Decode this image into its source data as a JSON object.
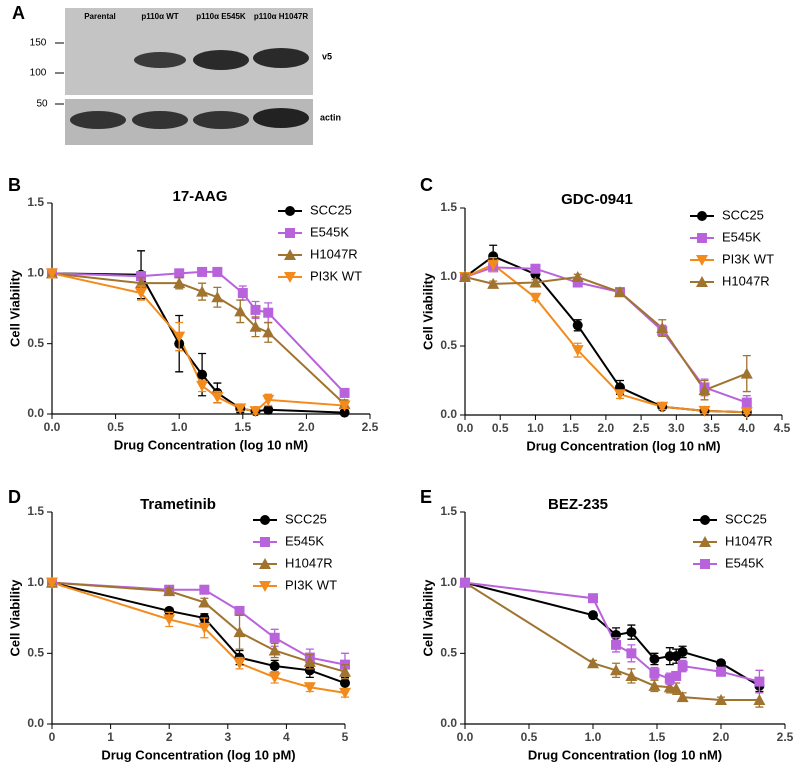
{
  "blot": {
    "panel": "A",
    "lanes": [
      "Parental",
      "p110α WT",
      "p110α E545K",
      "p110α H1047R"
    ],
    "markers": [
      "150",
      "100",
      "50"
    ],
    "bands": [
      "v5",
      "actin"
    ]
  },
  "chart_data": [
    {
      "type": "line",
      "panel": "B",
      "title": "17-AAG",
      "xlabel": "Drug Concentration (log 10 nM)",
      "ylabel": "Cell Viability",
      "legend": "upper right",
      "xlim": [
        0,
        2.5
      ],
      "ylim": [
        0,
        1.5
      ],
      "xticks": [
        {
          "value": 0,
          "label": "0.0"
        },
        0.5,
        {
          "value": 1,
          "label": "1.0"
        },
        1.5,
        {
          "value": 2,
          "label": "2.0"
        },
        2.5
      ],
      "yticks": [
        {
          "value": 0,
          "label": "0.0"
        },
        0.5,
        {
          "value": 1,
          "label": "1.0"
        },
        1.5
      ],
      "series": [
        {
          "name": "SCC25",
          "color": "#000000",
          "marker": "circle",
          "x": [
            0,
            0.7,
            1.0,
            1.18,
            1.3,
            1.48,
            1.6,
            1.7,
            2.3
          ],
          "values": [
            1.0,
            0.99,
            0.5,
            0.28,
            0.15,
            0.04,
            0.02,
            0.03,
            0.01
          ],
          "errors": [
            0.02,
            0.17,
            0.2,
            0.15,
            0.07,
            0.03,
            0.02,
            0.02,
            0.01
          ]
        },
        {
          "name": "E545K",
          "color": "#b862dc",
          "marker": "square",
          "x": [
            0,
            0.7,
            1.0,
            1.18,
            1.3,
            1.5,
            1.6,
            1.7,
            2.3
          ],
          "values": [
            1.0,
            0.98,
            1.0,
            1.01,
            1.01,
            0.86,
            0.74,
            0.72,
            0.15
          ],
          "errors": [
            0.02,
            0.03,
            0.02,
            0.02,
            0.02,
            0.05,
            0.06,
            0.07,
            0.02
          ]
        },
        {
          "name": "H1047R",
          "color": "#a0732f",
          "marker": "triangle-up",
          "x": [
            0,
            0.7,
            1.0,
            1.18,
            1.3,
            1.48,
            1.6,
            1.7,
            2.3
          ],
          "values": [
            1.0,
            0.93,
            0.93,
            0.87,
            0.83,
            0.73,
            0.62,
            0.58,
            0.07
          ],
          "errors": [
            0.03,
            0.04,
            0.04,
            0.06,
            0.07,
            0.08,
            0.07,
            0.07,
            0.03
          ]
        },
        {
          "name": "PI3K WT",
          "color": "#f28a1c",
          "marker": "triangle-down",
          "x": [
            0,
            0.7,
            1.0,
            1.18,
            1.3,
            1.48,
            1.6,
            1.7,
            2.3
          ],
          "values": [
            1.0,
            0.86,
            0.55,
            0.2,
            0.12,
            0.04,
            0.02,
            0.1,
            0.06
          ],
          "errors": [
            0.03,
            0.05,
            0.1,
            0.04,
            0.04,
            0.02,
            0.02,
            0.04,
            0.02
          ]
        }
      ]
    },
    {
      "type": "line",
      "panel": "C",
      "title": "GDC-0941",
      "xlabel": "Drug Concentration (log 10 nM)",
      "ylabel": "Cell Viability",
      "legend": "upper right",
      "xlim": [
        0,
        4.5
      ],
      "ylim": [
        0,
        1.5
      ],
      "xticks": [
        {
          "value": 0,
          "label": "0.0"
        },
        0.5,
        {
          "value": 1,
          "label": "1.0"
        },
        1.5,
        {
          "value": 2,
          "label": "2.0"
        },
        2.5,
        {
          "value": 3,
          "label": "3.0"
        },
        3.5,
        {
          "value": 4,
          "label": "4.0"
        },
        4.5
      ],
      "yticks": [
        {
          "value": 0,
          "label": "0.0"
        },
        0.5,
        {
          "value": 1,
          "label": "1.0"
        },
        1.5
      ],
      "series": [
        {
          "name": "SCC25",
          "color": "#000000",
          "marker": "circle",
          "x": [
            0,
            0.4,
            1.0,
            1.6,
            2.2,
            2.8,
            3.4,
            4.0
          ],
          "values": [
            1.0,
            1.15,
            1.02,
            0.65,
            0.2,
            0.06,
            0.03,
            0.02
          ],
          "errors": [
            0.02,
            0.08,
            0.02,
            0.04,
            0.05,
            0.02,
            0.01,
            0.01
          ]
        },
        {
          "name": "E545K",
          "color": "#b862dc",
          "marker": "square",
          "x": [
            0,
            0.4,
            1.0,
            1.6,
            2.2,
            2.8,
            3.4,
            4.0
          ],
          "values": [
            1.0,
            1.07,
            1.06,
            0.96,
            0.89,
            0.61,
            0.2,
            0.09
          ],
          "errors": [
            0.02,
            0.03,
            0.02,
            0.02,
            0.02,
            0.04,
            0.06,
            0.05
          ]
        },
        {
          "name": "PI3K WT",
          "color": "#f28a1c",
          "marker": "triangle-down",
          "x": [
            0,
            0.4,
            1.0,
            1.6,
            2.2,
            2.8,
            3.4,
            4.0
          ],
          "values": [
            1.0,
            1.09,
            0.85,
            0.47,
            0.15,
            0.06,
            0.03,
            0.02
          ],
          "errors": [
            0.02,
            0.05,
            0.02,
            0.05,
            0.03,
            0.02,
            0.02,
            0.01
          ]
        },
        {
          "name": "H1047R",
          "color": "#a0732f",
          "marker": "triangle-up",
          "x": [
            0,
            0.4,
            1.0,
            1.6,
            2.2,
            2.8,
            3.4,
            4.0
          ],
          "values": [
            1.0,
            0.95,
            0.96,
            1.0,
            0.89,
            0.63,
            0.18,
            0.3
          ],
          "errors": [
            0.02,
            0.02,
            0.02,
            0.02,
            0.03,
            0.06,
            0.07,
            0.13
          ]
        }
      ]
    },
    {
      "type": "line",
      "panel": "D",
      "title": "Trametinib",
      "xlabel": "Drug Concentration (log 10 pM)",
      "ylabel": "Cell Viability",
      "legend": "upper right",
      "xlim": [
        0,
        5
      ],
      "ylim": [
        0,
        1.5
      ],
      "xticks": [
        0,
        1,
        2,
        3,
        4,
        5
      ],
      "yticks": [
        {
          "value": 0,
          "label": "0.0"
        },
        0.5,
        {
          "value": 1,
          "label": "1.0"
        },
        1.5
      ],
      "series": [
        {
          "name": "SCC25",
          "color": "#000000",
          "marker": "circle",
          "x": [
            0,
            2,
            2.6,
            3.2,
            3.8,
            4.4,
            5
          ],
          "values": [
            1.0,
            0.8,
            0.75,
            0.47,
            0.41,
            0.38,
            0.29
          ],
          "errors": [
            0.02,
            0.02,
            0.03,
            0.05,
            0.04,
            0.05,
            0.04
          ]
        },
        {
          "name": "E545K",
          "color": "#b862dc",
          "marker": "square",
          "x": [
            0,
            2,
            2.6,
            3.2,
            3.8,
            4.4,
            5
          ],
          "values": [
            1.0,
            0.95,
            0.95,
            0.8,
            0.61,
            0.47,
            0.42
          ],
          "errors": [
            0.02,
            0.02,
            0.02,
            0.03,
            0.06,
            0.06,
            0.08
          ]
        },
        {
          "name": "H1047R",
          "color": "#a0732f",
          "marker": "triangle-up",
          "x": [
            0,
            2,
            2.6,
            3.2,
            3.8,
            4.4,
            5
          ],
          "values": [
            1.0,
            0.94,
            0.86,
            0.65,
            0.52,
            0.44,
            0.37
          ],
          "errors": [
            0.02,
            0.02,
            0.03,
            0.12,
            0.05,
            0.05,
            0.05
          ]
        },
        {
          "name": "PI3K WT",
          "color": "#f28a1c",
          "marker": "triangle-down",
          "x": [
            0,
            2,
            2.6,
            3.2,
            3.8,
            4.4,
            5
          ],
          "values": [
            1.0,
            0.74,
            0.68,
            0.43,
            0.33,
            0.26,
            0.22
          ],
          "errors": [
            0.02,
            0.05,
            0.07,
            0.04,
            0.04,
            0.03,
            0.03
          ]
        }
      ]
    },
    {
      "type": "line",
      "panel": "E",
      "title": "BEZ-235",
      "xlabel": "Drug Concentration (log 10 nM)",
      "ylabel": "Cell Viability",
      "legend": "upper right",
      "xlim": [
        0,
        2.5
      ],
      "ylim": [
        0,
        1.5
      ],
      "xticks": [
        {
          "value": 0,
          "label": "0.0"
        },
        0.5,
        {
          "value": 1,
          "label": "1.0"
        },
        1.5,
        {
          "value": 2,
          "label": "2.0"
        },
        2.5
      ],
      "yticks": [
        {
          "value": 0,
          "label": "0.0"
        },
        0.5,
        {
          "value": 1,
          "label": "1.0"
        },
        1.5
      ],
      "series": [
        {
          "name": "SCC25",
          "color": "#000000",
          "marker": "circle",
          "x": [
            0,
            1.0,
            1.18,
            1.3,
            1.48,
            1.6,
            1.65,
            1.7,
            2.0,
            2.3
          ],
          "values": [
            1.0,
            0.77,
            0.63,
            0.65,
            0.46,
            0.48,
            0.48,
            0.51,
            0.43,
            0.27
          ],
          "errors": [
            0.02,
            0.02,
            0.05,
            0.05,
            0.04,
            0.06,
            0.05,
            0.04,
            0.02,
            0.04
          ]
        },
        {
          "name": "H1047R",
          "color": "#a0732f",
          "marker": "triangle-up",
          "x": [
            0,
            1.0,
            1.18,
            1.3,
            1.48,
            1.6,
            1.65,
            1.7,
            2.0,
            2.3
          ],
          "values": [
            1.0,
            0.43,
            0.38,
            0.34,
            0.27,
            0.26,
            0.25,
            0.19,
            0.17,
            0.17
          ],
          "errors": [
            0.02,
            0.02,
            0.05,
            0.05,
            0.04,
            0.04,
            0.04,
            0.03,
            0.02,
            0.05
          ]
        },
        {
          "name": "E545K",
          "color": "#b862dc",
          "marker": "square",
          "x": [
            0,
            1.0,
            1.18,
            1.3,
            1.48,
            1.6,
            1.65,
            1.7,
            2.0,
            2.3
          ],
          "values": [
            1.0,
            0.89,
            0.56,
            0.5,
            0.36,
            0.32,
            0.34,
            0.41,
            0.37,
            0.3
          ],
          "errors": [
            0.02,
            0.02,
            0.05,
            0.06,
            0.04,
            0.04,
            0.03,
            0.04,
            0.03,
            0.08
          ]
        }
      ]
    }
  ]
}
